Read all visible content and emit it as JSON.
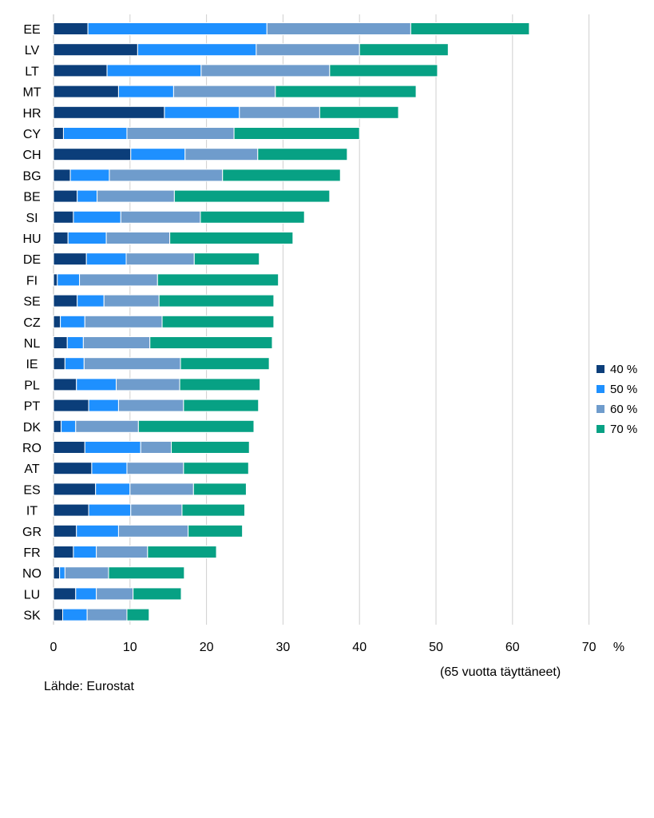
{
  "chart_data": {
    "type": "bar",
    "orientation": "horizontal",
    "stacked": true,
    "categories": [
      "EE",
      "LV",
      "LT",
      "MT",
      "HR",
      "CY",
      "CH",
      "BG",
      "BE",
      "SI",
      "HU",
      "DE",
      "FI",
      "SE",
      "CZ",
      "NL",
      "IE",
      "PL",
      "PT",
      "DK",
      "RO",
      "AT",
      "ES",
      "IT",
      "GR",
      "FR",
      "NO",
      "LU",
      "SK"
    ],
    "series": [
      {
        "name": "40 %",
        "color": "#0b3e7a",
        "values": [
          4.5,
          11.0,
          7.0,
          8.5,
          14.5,
          1.3,
          10.1,
          2.2,
          3.1,
          2.6,
          1.9,
          4.3,
          0.5,
          3.1,
          0.9,
          1.8,
          1.5,
          3.0,
          4.6,
          1.0,
          4.1,
          5.0,
          5.5,
          4.6,
          3.0,
          2.6,
          0.8,
          2.9,
          1.2
        ]
      },
      {
        "name": "50 %",
        "color": "#1e90ff",
        "values": [
          23.4,
          15.5,
          12.3,
          7.2,
          9.8,
          8.3,
          7.1,
          5.1,
          2.6,
          6.2,
          5.0,
          5.2,
          2.9,
          3.5,
          3.2,
          2.1,
          2.5,
          5.2,
          3.9,
          1.9,
          7.3,
          4.6,
          4.5,
          5.5,
          5.5,
          3.0,
          0.7,
          2.7,
          3.2
        ]
      },
      {
        "name": "60 %",
        "color": "#6f9ccc",
        "values": [
          18.8,
          13.5,
          16.8,
          13.3,
          10.5,
          14.0,
          9.5,
          14.8,
          10.1,
          10.4,
          8.3,
          8.9,
          10.2,
          7.2,
          10.1,
          8.7,
          12.6,
          8.3,
          8.5,
          8.2,
          4.0,
          7.4,
          8.3,
          6.7,
          9.1,
          6.7,
          5.7,
          4.8,
          5.2
        ]
      },
      {
        "name": "70 %",
        "color": "#07a184",
        "values": [
          15.5,
          11.6,
          14.1,
          18.4,
          10.3,
          16.4,
          11.7,
          15.4,
          20.3,
          13.6,
          16.1,
          8.5,
          15.8,
          15.0,
          14.6,
          16.0,
          11.6,
          10.5,
          9.8,
          15.1,
          10.2,
          8.5,
          6.9,
          8.2,
          7.1,
          9.0,
          9.9,
          6.3,
          2.9
        ]
      }
    ],
    "x_ticks": [
      "0",
      "10",
      "20",
      "30",
      "40",
      "50",
      "60",
      "70"
    ],
    "xlim": [
      0,
      70
    ],
    "x_unit": "%",
    "x_note": "(65 vuotta täyttäneet)",
    "grid": "vertical",
    "legend_position": "right"
  },
  "source": "Lähde: Eurostat"
}
